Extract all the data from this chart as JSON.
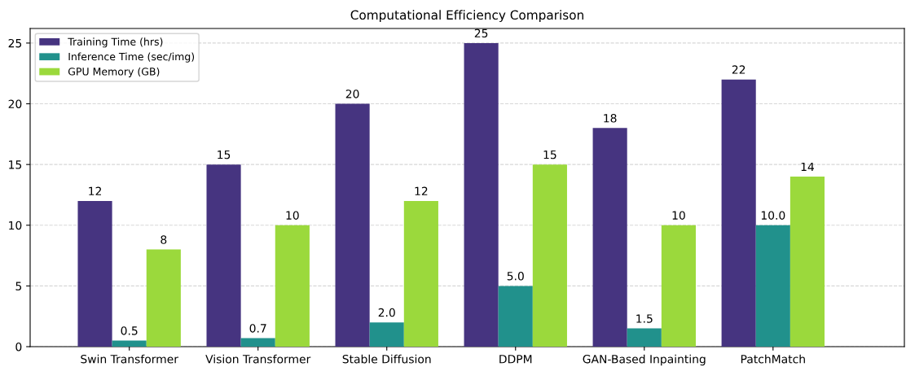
{
  "chart_data": {
    "type": "bar",
    "title": "Computational Efficiency Comparison",
    "categories": [
      "Swin Transformer",
      "Vision Transformer",
      "Stable Diffusion",
      "DDPM",
      "GAN-Based Inpainting",
      "PatchMatch"
    ],
    "series": [
      {
        "name": "Training Time (hrs)",
        "color": "#463480",
        "values": [
          12,
          15,
          20,
          25,
          18,
          22
        ],
        "value_labels": [
          "12",
          "15",
          "20",
          "25",
          "18",
          "22"
        ]
      },
      {
        "name": "Inference Time (sec/img)",
        "color": "#21918c",
        "values": [
          0.5,
          0.7,
          2.0,
          5.0,
          1.5,
          10.0
        ],
        "value_labels": [
          "0.5",
          "0.7",
          "2.0",
          "5.0",
          "1.5",
          "10.0"
        ]
      },
      {
        "name": "GPU Memory (GB)",
        "color": "#9bd93c",
        "values": [
          8,
          10,
          12,
          15,
          10,
          14
        ],
        "value_labels": [
          "8",
          "10",
          "12",
          "15",
          "10",
          "14"
        ]
      }
    ],
    "ylim": [
      0,
      26.2
    ],
    "yticks": [
      0,
      5,
      10,
      15,
      20,
      25
    ],
    "grid": "y",
    "legend": "top left"
  }
}
